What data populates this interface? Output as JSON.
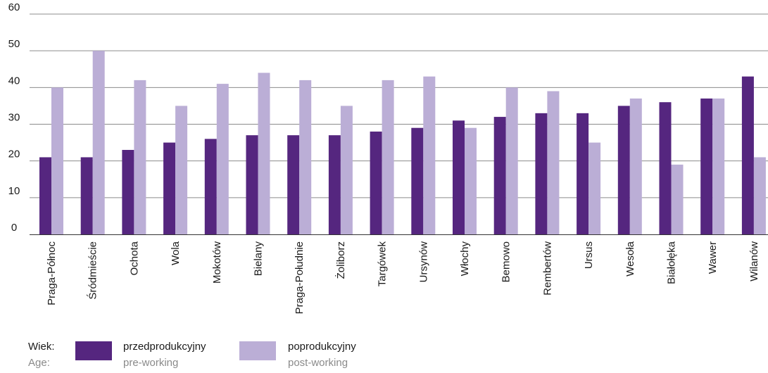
{
  "chart_data": {
    "type": "bar",
    "categories": [
      "Praga-Północ",
      "Śródmieście",
      "Ochota",
      "Wola",
      "Mokotów",
      "Bielany",
      "Praga-Południe",
      "Żoliborz",
      "Targówek",
      "Ursynów",
      "Włochy",
      "Bemowo",
      "Rembertów",
      "Ursus",
      "Wesoła",
      "Białołęka",
      "Wawer",
      "Wilanów"
    ],
    "series": [
      {
        "name": "przedprodukcyjny",
        "name_en": "pre-working",
        "color": "#55267f",
        "values": [
          21,
          21,
          23,
          25,
          26,
          27,
          27,
          27,
          28,
          29,
          31,
          32,
          33,
          33,
          35,
          36,
          37,
          43
        ]
      },
      {
        "name": "poprodukcyjny",
        "name_en": "post-working",
        "color": "#bbaed6",
        "values": [
          40,
          50,
          42,
          35,
          41,
          44,
          42,
          35,
          42,
          43,
          29,
          40,
          39,
          25,
          37,
          19,
          37,
          21
        ]
      }
    ],
    "ylim": [
      0,
      60
    ],
    "yticks": [
      0,
      10,
      20,
      30,
      40,
      50,
      60
    ],
    "grid": true,
    "legend_position": "bottom-left"
  },
  "legend": {
    "title": "Wiek:",
    "title_en": "Age:"
  }
}
